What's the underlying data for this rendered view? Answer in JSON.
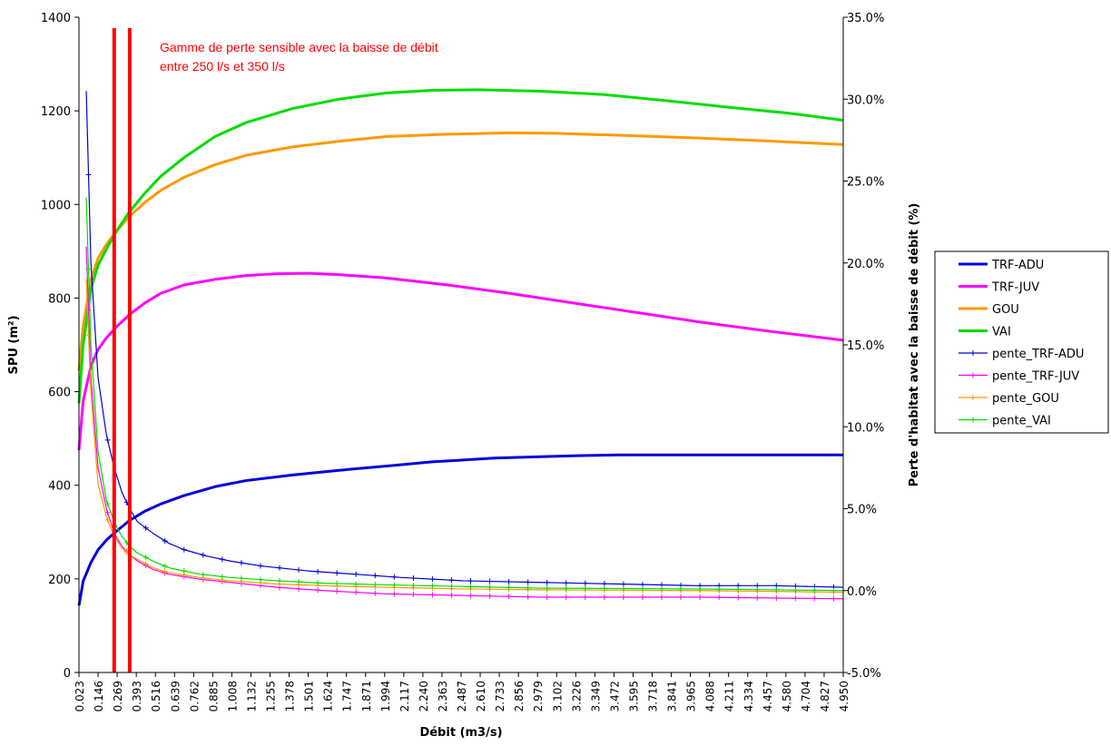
{
  "chart_data": {
    "type": "line",
    "xlabel": "Débit (m3/s)",
    "ylabel": "SPU (m²)",
    "y2label": "Perte d'habitat avec la baisse de débit (%)",
    "ylim": [
      0,
      1400
    ],
    "y_ticks": [
      "0",
      "200",
      "400",
      "600",
      "800",
      "1000",
      "1200",
      "1400"
    ],
    "y2lim": [
      -5,
      35
    ],
    "y2_ticks": [
      "-5.0%",
      "0.0%",
      "5.0%",
      "10.0%",
      "15.0%",
      "20.0%",
      "25.0%",
      "30.0%",
      "35.0%"
    ],
    "x_range": [
      0.023,
      4.95
    ],
    "x_ticks": [
      "0.023",
      "0.146",
      "0.269",
      "0.393",
      "0.516",
      "0.639",
      "0.762",
      "0.885",
      "1.008",
      "1.132",
      "1.255",
      "1.378",
      "1.501",
      "1.624",
      "1.747",
      "1.871",
      "1.994",
      "2.117",
      "2.240",
      "2.363",
      "2.487",
      "2.610",
      "2.733",
      "2.856",
      "2.979",
      "3.102",
      "3.226",
      "3.349",
      "3.472",
      "3.595",
      "3.718",
      "3.841",
      "3.965",
      "4.088",
      "4.211",
      "4.334",
      "4.457",
      "4.580",
      "4.704",
      "4.827",
      "4.950"
    ],
    "grid": false,
    "legend_position": "right",
    "annotation": {
      "lines": [
        "Gamme de perte sensible avec la baisse de débit",
        "entre 250 l/s et 350 l/s"
      ],
      "vlines_x": [
        0.25,
        0.35
      ],
      "color": "#ff0000"
    },
    "series": [
      {
        "name": "TRF-ADU",
        "axis": "left",
        "color": "#0000dd",
        "markers": false,
        "x": [
          0.023,
          0.05,
          0.1,
          0.146,
          0.2,
          0.269,
          0.35,
          0.45,
          0.55,
          0.7,
          0.9,
          1.1,
          1.4,
          1.7,
          2.0,
          2.3,
          2.7,
          3.2,
          3.5,
          4.0,
          4.5,
          4.95
        ],
        "y": [
          143,
          195,
          235,
          262,
          283,
          303,
          325,
          345,
          360,
          378,
          397,
          410,
          422,
          432,
          441,
          450,
          458,
          463,
          465,
          465,
          465,
          465
        ]
      },
      {
        "name": "TRF-JUV",
        "axis": "left",
        "color": "#ff00ff",
        "markers": false,
        "x": [
          0.023,
          0.05,
          0.1,
          0.146,
          0.2,
          0.269,
          0.35,
          0.45,
          0.55,
          0.7,
          0.9,
          1.1,
          1.3,
          1.5,
          1.7,
          2.0,
          2.4,
          2.8,
          3.2,
          3.6,
          4.0,
          4.5,
          4.95
        ],
        "y": [
          475,
          580,
          655,
          690,
          715,
          740,
          765,
          790,
          810,
          828,
          840,
          848,
          852,
          853,
          850,
          843,
          828,
          810,
          790,
          770,
          750,
          728,
          710
        ]
      },
      {
        "name": "GOU",
        "axis": "left",
        "color": "#ff9900",
        "markers": false,
        "x": [
          0.023,
          0.05,
          0.1,
          0.146,
          0.2,
          0.269,
          0.35,
          0.45,
          0.55,
          0.7,
          0.9,
          1.1,
          1.4,
          1.7,
          2.0,
          2.4,
          2.8,
          3.1,
          3.5,
          4.0,
          4.5,
          4.95
        ],
        "y": [
          645,
          740,
          840,
          885,
          915,
          945,
          975,
          1005,
          1030,
          1058,
          1085,
          1105,
          1123,
          1135,
          1145,
          1150,
          1153,
          1152,
          1148,
          1142,
          1135,
          1128
        ]
      },
      {
        "name": "VAI",
        "axis": "left",
        "color": "#00dd00",
        "markers": false,
        "x": [
          0.023,
          0.05,
          0.1,
          0.146,
          0.2,
          0.269,
          0.35,
          0.45,
          0.55,
          0.7,
          0.9,
          1.1,
          1.4,
          1.7,
          2.0,
          2.3,
          2.6,
          3.0,
          3.4,
          3.8,
          4.2,
          4.6,
          4.95
        ],
        "y": [
          575,
          700,
          820,
          870,
          905,
          945,
          985,
          1025,
          1060,
          1100,
          1145,
          1175,
          1205,
          1225,
          1238,
          1244,
          1245,
          1242,
          1235,
          1222,
          1208,
          1195,
          1180
        ]
      },
      {
        "name": "pente_TRF-ADU",
        "axis": "right",
        "color": "#0000dd",
        "markers": true,
        "x": [
          0.023,
          0.07,
          0.1,
          0.146,
          0.2,
          0.25,
          0.3,
          0.35,
          0.4,
          0.5,
          0.6,
          0.7,
          0.85,
          1.0,
          1.2,
          1.5,
          1.8,
          2.1,
          2.5,
          3.0,
          3.5,
          4.0,
          4.5,
          4.95
        ],
        "y": [
          null,
          30.5,
          20,
          13,
          9.5,
          7.5,
          6,
          5,
          4.2,
          3.5,
          2.9,
          2.5,
          2.1,
          1.8,
          1.5,
          1.2,
          1.0,
          0.8,
          0.6,
          0.5,
          0.4,
          0.3,
          0.3,
          0.2
        ]
      },
      {
        "name": "pente_TRF-JUV",
        "axis": "right",
        "color": "#ff00ff",
        "markers": true,
        "x": [
          0.07,
          0.1,
          0.146,
          0.2,
          0.25,
          0.3,
          0.35,
          0.4,
          0.5,
          0.6,
          0.8,
          1.0,
          1.3,
          1.6,
          2.0,
          2.5,
          3.0,
          4.0,
          4.95
        ],
        "y": [
          21,
          13,
          7.5,
          5,
          3.5,
          2.7,
          2.2,
          1.8,
          1.3,
          1.0,
          0.7,
          0.5,
          0.2,
          0,
          -0.2,
          -0.3,
          -0.4,
          -0.4,
          -0.5
        ]
      },
      {
        "name": "pente_GOU",
        "axis": "right",
        "color": "#ff9900",
        "markers": true,
        "x": [
          0.07,
          0.1,
          0.146,
          0.2,
          0.25,
          0.3,
          0.35,
          0.4,
          0.5,
          0.6,
          0.8,
          1.0,
          1.3,
          1.6,
          2.0,
          2.5,
          3.0,
          4.0,
          4.95
        ],
        "y": [
          19,
          12,
          6.5,
          4.5,
          3.3,
          2.6,
          2.2,
          1.9,
          1.4,
          1.1,
          0.8,
          0.6,
          0.4,
          0.3,
          0.2,
          0.1,
          0.05,
          0.0,
          -0.1
        ]
      },
      {
        "name": "pente_VAI",
        "axis": "right",
        "color": "#00dd00",
        "markers": true,
        "x": [
          0.023,
          0.07,
          0.1,
          0.146,
          0.2,
          0.25,
          0.3,
          0.35,
          0.4,
          0.5,
          0.6,
          0.8,
          1.0,
          1.3,
          1.6,
          2.0,
          2.5,
          3.0,
          4.0,
          4.95
        ],
        "y": [
          null,
          24,
          15,
          8.5,
          5.5,
          4.2,
          3.3,
          2.7,
          2.3,
          1.8,
          1.4,
          1.0,
          0.8,
          0.6,
          0.45,
          0.35,
          0.25,
          0.15,
          0.1,
          0.0
        ]
      }
    ]
  }
}
